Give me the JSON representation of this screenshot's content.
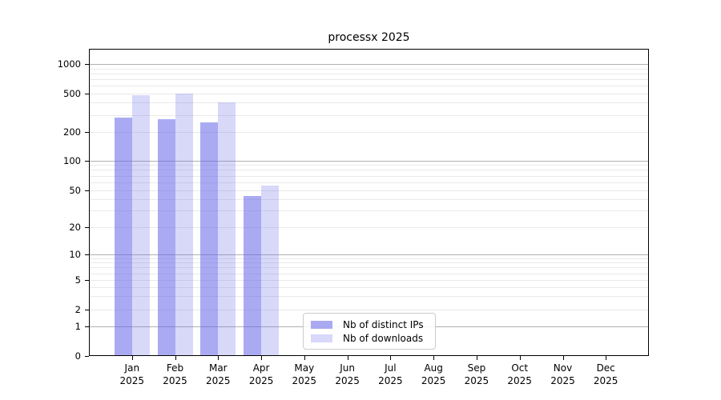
{
  "chart_data": {
    "type": "bar",
    "title": "processx 2025",
    "year": "2025",
    "months": [
      "Jan",
      "Feb",
      "Mar",
      "Apr",
      "May",
      "Jun",
      "Jul",
      "Aug",
      "Sep",
      "Oct",
      "Nov",
      "Dec"
    ],
    "categories": [
      "Jan 2025",
      "Feb 2025",
      "Mar 2025",
      "Apr 2025",
      "May 2025",
      "Jun 2025",
      "Jul 2025",
      "Aug 2025",
      "Sep 2025",
      "Oct 2025",
      "Nov 2025",
      "Dec 2025"
    ],
    "series": [
      {
        "name": "Nb of distinct IPs",
        "color": "rgba(101,101,233,0.55)",
        "values": [
          280,
          270,
          250,
          43,
          0,
          0,
          0,
          0,
          0,
          0,
          0,
          0
        ]
      },
      {
        "name": "Nb of downloads",
        "color": "rgba(101,101,233,0.25)",
        "values": [
          475,
          495,
          405,
          56,
          0,
          0,
          0,
          0,
          0,
          0,
          0,
          0
        ]
      }
    ],
    "y_axis": {
      "scale": "pseudo-log (asinh-like), includes 0",
      "ticks": [
        0,
        1,
        2,
        5,
        10,
        20,
        50,
        100,
        200,
        500,
        1000
      ],
      "top_value": 1600
    },
    "grid": {
      "orientation": "horizontal",
      "major_at": [
        1,
        10,
        100,
        1000
      ],
      "minor_at_mantissas": [
        2,
        3,
        4,
        5,
        6,
        7,
        8,
        9
      ],
      "major_color": "#b0b0b0",
      "minor_color": "#e9e9e9"
    },
    "legend": {
      "position": "inside plot, bottom left-of-center"
    },
    "axis_color": "#000000",
    "background": "#ffffff"
  }
}
